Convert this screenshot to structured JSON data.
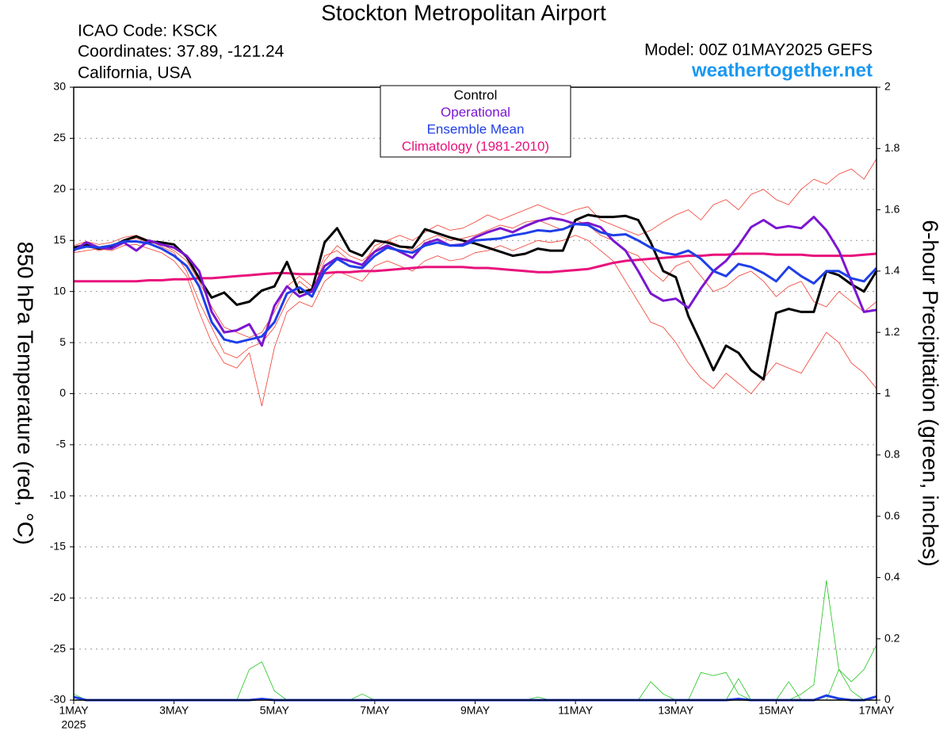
{
  "chart_data": {
    "type": "line",
    "title": "Stockton Metropolitan Airport",
    "info_lines": [
      "ICAO Code: KSCK",
      "Coordinates: 37.89, -121.24",
      "California, USA"
    ],
    "model": "Model: 00Z 01MAY2025 GEFS",
    "website": "weathertogether.net",
    "y_label": "850 hPa Temperature (red, °C)",
    "y2_label": "6-hour Precipitation (green, inches)",
    "x_year": "2025",
    "categories": [
      "1MAY",
      null,
      null,
      null,
      null,
      null,
      null,
      null,
      "3MAY",
      null,
      null,
      null,
      null,
      null,
      null,
      null,
      "5MAY",
      null,
      null,
      null,
      null,
      null,
      null,
      null,
      "7MAY",
      null,
      null,
      null,
      null,
      null,
      null,
      null,
      "9MAY",
      null,
      null,
      null,
      null,
      null,
      null,
      null,
      "11MAY",
      null,
      null,
      null,
      null,
      null,
      null,
      null,
      "13MAY",
      null,
      null,
      null,
      null,
      null,
      null,
      null,
      "15MAY",
      null,
      null,
      null,
      null,
      null,
      null,
      null,
      "17MAY"
    ],
    "ylim": [
      -30,
      30
    ],
    "yticks": [
      -30,
      -25,
      -20,
      -15,
      -10,
      -5,
      0,
      5,
      10,
      15,
      20,
      25,
      30
    ],
    "y2lim": [
      0,
      2
    ],
    "y2ticks": [
      0,
      0.2,
      0.4,
      0.6,
      0.8,
      1,
      1.2,
      1.4,
      1.6,
      1.8,
      2
    ],
    "grid": true,
    "members": [
      {
        "color": "#f03c2e",
        "values": [
          14.5,
          14.9,
          14.6,
          14.8,
          15.3,
          15.5,
          15.0,
          14.4,
          13.8,
          12.0,
          9.0,
          6.5,
          4.0,
          3.5,
          4.5,
          5.0,
          6.5,
          9.0,
          11.0,
          10.0,
          13.0,
          14.5,
          13.5,
          13.0,
          14.0,
          15.0,
          15.5,
          15.0,
          15.8,
          16.5,
          16.0,
          16.2,
          16.8,
          17.5,
          17.0,
          17.5,
          18.0,
          18.5,
          18.0,
          17.5,
          18.0,
          18.3,
          17.0,
          16.5,
          16.0,
          15.5,
          16.0,
          16.8,
          17.5,
          18.0,
          17.0,
          18.5,
          19.0,
          18.0,
          19.5,
          20.0,
          19.0,
          18.5,
          20.0,
          21.0,
          20.5,
          21.5,
          22.0,
          21.0,
          23.0
        ]
      },
      {
        "color": "#f03c2e",
        "values": [
          13.8,
          14.0,
          14.2,
          14.0,
          14.5,
          14.6,
          14.2,
          13.8,
          13.0,
          11.5,
          8.0,
          5.0,
          3.0,
          2.5,
          4.0,
          -1.2,
          4.5,
          8.0,
          9.0,
          8.5,
          11.0,
          12.0,
          11.5,
          11.0,
          12.5,
          13.0,
          12.5,
          12.0,
          13.0,
          13.5,
          13.0,
          13.2,
          13.8,
          14.0,
          14.5,
          14.0,
          14.5,
          15.0,
          14.8,
          15.0,
          15.5,
          15.0,
          14.0,
          13.0,
          11.0,
          9.0,
          7.0,
          6.5,
          5.0,
          3.0,
          1.5,
          0.5,
          2.0,
          1.0,
          0.0,
          1.5,
          3.0,
          2.5,
          2.0,
          4.0,
          6.0,
          5.0,
          3.0,
          2.0,
          0.5
        ]
      },
      {
        "color": "#f03c2e",
        "values": [
          14.2,
          14.5,
          14.0,
          14.3,
          15.0,
          15.2,
          14.8,
          14.6,
          14.0,
          13.0,
          11.0,
          8.5,
          6.5,
          6.0,
          5.5,
          6.0,
          8.0,
          10.5,
          11.5,
          10.5,
          13.5,
          14.0,
          13.0,
          12.5,
          14.5,
          15.0,
          14.5,
          14.0,
          15.0,
          15.5,
          15.0,
          15.2,
          15.5,
          16.0,
          16.5,
          16.2,
          16.8,
          17.0,
          16.5,
          16.0,
          17.0,
          16.5,
          15.5,
          15.0,
          14.0,
          13.5,
          12.0,
          11.0,
          12.5,
          13.0,
          11.5,
          10.0,
          10.5,
          11.5,
          12.0,
          11.0,
          9.5,
          10.5,
          11.0,
          9.0,
          8.5,
          10.0,
          9.0,
          8.0,
          9.0
        ]
      }
    ],
    "precip_series": [
      {
        "color": "#22c41e",
        "axis": "y2",
        "values": [
          0,
          0,
          0,
          0,
          0,
          0,
          0,
          0,
          0,
          0,
          0,
          0,
          0,
          0,
          0.1,
          0.125,
          0.03,
          0,
          0,
          0,
          0,
          0,
          0,
          0,
          0,
          0,
          0,
          0,
          0,
          0,
          0,
          0,
          0,
          0,
          0,
          0,
          0,
          0,
          0,
          0,
          0,
          0,
          0,
          0,
          0,
          0,
          0.06,
          0.02,
          0,
          0,
          0.09,
          0.08,
          0.09,
          0.02,
          0,
          0,
          0,
          0,
          0.02,
          0.05,
          0.39,
          0.1,
          0.06,
          0.1,
          0.18
        ]
      },
      {
        "color": "#22c41e",
        "axis": "y2",
        "values": [
          0.02,
          0,
          0,
          0,
          0,
          0,
          0,
          0,
          0,
          0,
          0,
          0,
          0,
          0,
          0,
          0,
          0,
          0,
          0,
          0,
          0,
          0,
          0,
          0.02,
          0,
          0,
          0,
          0,
          0,
          0,
          0,
          0,
          0,
          0,
          0,
          0,
          0,
          0.01,
          0,
          0,
          0,
          0,
          0,
          0,
          0,
          0,
          0,
          0,
          0,
          0,
          0,
          0,
          0,
          0.07,
          0,
          0,
          0,
          0.06,
          0,
          0,
          0,
          0.1,
          0.03,
          0,
          0
        ]
      },
      {
        "color": "#1f3fe8",
        "axis": "y2",
        "values": [
          0.01,
          0,
          0,
          0,
          0,
          0,
          0,
          0,
          0,
          0,
          0,
          0,
          0,
          0,
          0,
          0.004,
          0,
          0,
          0,
          0,
          0,
          0,
          0,
          0,
          0,
          0,
          0,
          0,
          0,
          0,
          0,
          0,
          0,
          0,
          0,
          0,
          0,
          0,
          0,
          0,
          0,
          0,
          0,
          0,
          0,
          0,
          0,
          0,
          0,
          0,
          0,
          0,
          0,
          0.004,
          0,
          0,
          0,
          0,
          0,
          0,
          0.015,
          0.005,
          0,
          0,
          0.012
        ]
      }
    ],
    "series": [
      {
        "name": "Control",
        "color": "#000000",
        "values": [
          14.3,
          14.6,
          14.2,
          14.4,
          15.0,
          15.4,
          14.9,
          14.8,
          14.6,
          13.4,
          11.3,
          9.4,
          9.9,
          8.7,
          9.0,
          10.1,
          10.5,
          12.9,
          9.9,
          10.2,
          14.8,
          16.2,
          14.0,
          13.5,
          15.0,
          14.8,
          14.4,
          14.3,
          16.1,
          15.7,
          15.3,
          15.0,
          14.7,
          14.3,
          13.9,
          13.5,
          13.7,
          14.2,
          14.0,
          14.0,
          17.0,
          17.5,
          17.3,
          17.3,
          17.4,
          17.0,
          14.8,
          12.0,
          11.4,
          7.6,
          5.0,
          2.3,
          4.7,
          4.0,
          2.3,
          1.4,
          7.9,
          8.3,
          8.0,
          8.0,
          12.0,
          11.6,
          10.7,
          10.0,
          12.0
        ]
      },
      {
        "name": "Operational",
        "color": "#7b16d0",
        "values": [
          14.0,
          14.8,
          14.3,
          14.2,
          14.8,
          14.0,
          15.0,
          14.6,
          14.3,
          13.5,
          12.0,
          8.0,
          6.0,
          6.2,
          6.8,
          4.7,
          8.6,
          10.5,
          9.5,
          10.0,
          12.5,
          13.3,
          13.0,
          12.6,
          13.9,
          14.5,
          13.9,
          13.3,
          14.7,
          15.1,
          14.5,
          14.6,
          15.3,
          15.8,
          16.2,
          15.8,
          16.4,
          16.9,
          17.2,
          17.0,
          16.6,
          16.7,
          16.3,
          15.0,
          14.0,
          12.0,
          9.8,
          9.1,
          9.3,
          8.4,
          10.3,
          12.0,
          13.0,
          14.5,
          16.3,
          17.0,
          16.2,
          16.4,
          16.2,
          17.3,
          16.0,
          14.0,
          11.0,
          8.0,
          8.2
        ]
      },
      {
        "name": "Ensemble Mean",
        "color": "#1f3fe8",
        "values": [
          14.1,
          14.4,
          14.3,
          14.5,
          14.9,
          14.9,
          14.7,
          14.2,
          13.5,
          12.5,
          10.5,
          7.0,
          5.3,
          5.0,
          5.3,
          5.6,
          7.0,
          9.8,
          10.4,
          9.5,
          12.0,
          13.2,
          12.5,
          12.3,
          13.5,
          14.3,
          14.0,
          13.8,
          14.5,
          14.8,
          14.5,
          14.5,
          15.0,
          15.1,
          15.2,
          15.5,
          15.7,
          16.0,
          15.9,
          16.1,
          16.6,
          16.5,
          15.8,
          15.5,
          15.6,
          15.0,
          14.3,
          13.8,
          13.6,
          14.0,
          13.2,
          12.0,
          11.5,
          12.7,
          12.4,
          11.8,
          11.0,
          12.4,
          11.5,
          10.8,
          12.0,
          12.0,
          11.3,
          11.0,
          12.3
        ]
      },
      {
        "name": "Climatology (1981-2010)",
        "color": "#e8127c",
        "values": [
          11.0,
          11.0,
          11.0,
          11.0,
          11.0,
          11.0,
          11.1,
          11.1,
          11.2,
          11.2,
          11.3,
          11.3,
          11.4,
          11.5,
          11.6,
          11.7,
          11.8,
          11.8,
          11.7,
          11.7,
          11.8,
          11.9,
          11.9,
          12.0,
          12.0,
          12.1,
          12.2,
          12.3,
          12.4,
          12.4,
          12.4,
          12.4,
          12.3,
          12.3,
          12.2,
          12.1,
          12.0,
          11.9,
          11.9,
          12.0,
          12.1,
          12.2,
          12.5,
          12.8,
          13.0,
          13.1,
          13.2,
          13.3,
          13.4,
          13.5,
          13.5,
          13.6,
          13.6,
          13.7,
          13.7,
          13.7,
          13.6,
          13.6,
          13.6,
          13.5,
          13.5,
          13.5,
          13.5,
          13.6,
          13.7
        ]
      }
    ]
  }
}
